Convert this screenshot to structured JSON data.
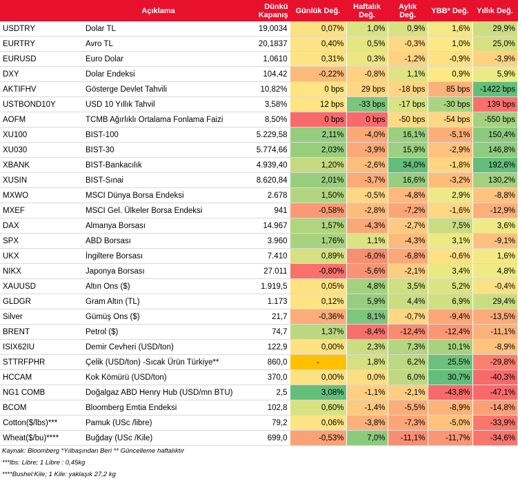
{
  "headers": {
    "code": "",
    "desc": "Açıklama",
    "close_l1": "Dünkü",
    "close_l2": "Kapanış",
    "daily": "Günlük Değ.",
    "weekly_l1": "Haftalık",
    "weekly_l2": "Değ.",
    "monthly_l1": "Aylık",
    "monthly_l2": "Değ.",
    "ytd": "YBB* Değ.",
    "yearly": "Yıllık Değ."
  },
  "rows": [
    {
      "code": "USDTRY",
      "desc": "Dolar TL",
      "close": "19,0034",
      "daily": "0,07%",
      "weekly": "1,0%",
      "monthly": "0,9%",
      "ytd": "1,6%",
      "yearly": "29,9%",
      "colors": [
        "#fde082",
        "#d9e381",
        "#d8e281",
        "#f6e884",
        "#cddd81"
      ]
    },
    {
      "code": "EURTRY",
      "desc": "Avro TL",
      "close": "20,1837",
      "daily": "0,40%",
      "weekly": "0,5%",
      "monthly": "-0,3%",
      "ytd": "1,0%",
      "yearly": "25,0%",
      "colors": [
        "#fde383",
        "#e5e582",
        "#ffd981",
        "#fbe983",
        "#d6e081"
      ]
    },
    {
      "code": "EURUSD",
      "desc": "Euro Dolar",
      "close": "1,0610",
      "daily": "0,31%",
      "weekly": "0,3%",
      "monthly": "-1,2%",
      "ytd": "-0,9%",
      "yearly": "-3,9%",
      "colors": [
        "#fde383",
        "#ece683",
        "#fed280",
        "#ffe183",
        "#fed281"
      ]
    },
    {
      "code": "DXY",
      "desc": "Dolar Endeksi",
      "close": "104,42",
      "daily": "-0,22%",
      "weekly": "-0,8%",
      "monthly": "1,1%",
      "ytd": "0,9%",
      "yearly": "5,9%",
      "colors": [
        "#fcbb7b",
        "#ffd180",
        "#dfe382",
        "#fce983",
        "#ecea84"
      ]
    },
    {
      "code": "AKTIFHV",
      "desc": "Gösterge Devlet Tahvili",
      "close": "10,82%",
      "daily": "0 bps",
      "weekly": "29 bps",
      "monthly": "-18 bps",
      "ytd": "85 bps",
      "yearly": "-1422 bps",
      "colors": [
        "#fee482",
        "#fed782",
        "#fed580",
        "#fbb27a",
        "#64be7b"
      ]
    },
    {
      "code": "USTBOND10Y",
      "desc": "USD 10 Yıllık Tahvil",
      "close": "3,58%",
      "daily": "12 bps",
      "weekly": "-33 bps",
      "monthly": "-17 bps",
      "ytd": "-30 bps",
      "yearly": "139 bps",
      "colors": [
        "#fee482",
        "#7cc57d",
        "#d8e381",
        "#acd480",
        "#f8706c"
      ]
    },
    {
      "code": "AOFM",
      "desc": "TCMB Ağırlıklı Ortalama Fonlama Faizi",
      "close": "8,50%",
      "daily": "0 bps",
      "weekly": "0 bps",
      "monthly": "-50 bps",
      "ytd": "-54 bps",
      "yearly": "-550 bps",
      "colors": [
        "#f8696b",
        "#f8696b",
        "#fddc81",
        "#fdd781",
        "#a4d27f"
      ]
    },
    {
      "code": "XU100",
      "desc": "BIST-100",
      "close": "5.229,58",
      "daily": "2,11%",
      "weekly": "-4,0%",
      "monthly": "16,1%",
      "ytd": "-5,1%",
      "yearly": "150,4%",
      "colors": [
        "#94cd7e",
        "#fba877",
        "#9acf7e",
        "#fcae79",
        "#8ccb7e"
      ]
    },
    {
      "code": "XU030",
      "desc": "BIST-30",
      "close": "5.774,66",
      "daily": "2,03%",
      "weekly": "-3,9%",
      "monthly": "15,9%",
      "ytd": "-2,9%",
      "yearly": "146,8%",
      "colors": [
        "#97ce7e",
        "#fba977",
        "#9bd07f",
        "#fdc27d",
        "#8fcc7e"
      ]
    },
    {
      "code": "XBANK",
      "desc": "BIST-Bankacılık",
      "close": "4.939,40",
      "daily": "1,20%",
      "weekly": "-2,6%",
      "monthly": "34,0%",
      "ytd": "-1,8%",
      "yearly": "192,6%",
      "colors": [
        "#c5da80",
        "#fdbd7c",
        "#63be7b",
        "#ffd580",
        "#63be7b"
      ]
    },
    {
      "code": "XUSIN",
      "desc": "BIST-Sınai",
      "close": "8.620,84",
      "daily": "2,01%",
      "weekly": "-3,7%",
      "monthly": "16,6%",
      "ytd": "-3,2%",
      "yearly": "130,2%",
      "colors": [
        "#97ce7e",
        "#fbab78",
        "#97ce7e",
        "#fcbd7b",
        "#a3d17f"
      ]
    },
    {
      "code": "MXWO",
      "desc": "MSCI Dünya Borsa Endeksi",
      "close": "2.678",
      "daily": "1,50%",
      "weekly": "-0,5%",
      "monthly": "-4,8%",
      "ytd": "2,9%",
      "yearly": "-8,8%",
      "colors": [
        "#b4d57f",
        "#ffd681",
        "#fdb87b",
        "#eee984",
        "#fdc27e"
      ]
    },
    {
      "code": "MXEF",
      "desc": "MSCI Gel. Ülkeler Borsa Endeksi",
      "close": "941",
      "daily": "-0,58%",
      "weekly": "-2,8%",
      "monthly": "-7,2%",
      "ytd": "-1,6%",
      "yearly": "-12,9%",
      "colors": [
        "#fa9974",
        "#fcbc7b",
        "#fca577",
        "#ffd681",
        "#fcaf7a"
      ]
    },
    {
      "code": "DAX",
      "desc": "Almanya Borsası",
      "close": "14.967",
      "daily": "1,57%",
      "weekly": "-4,3%",
      "monthly": "-2,7%",
      "ytd": "7,5%",
      "yearly": "3,6%",
      "colors": [
        "#b0d47f",
        "#fba877",
        "#fdca7f",
        "#c9dc81",
        "#f0e984"
      ]
    },
    {
      "code": "SPX",
      "desc": "ABD Borsası",
      "close": "3.960",
      "daily": "1,76%",
      "weekly": "1,1%",
      "monthly": "-4,3%",
      "ytd": "3,1%",
      "yearly": "-9,1%",
      "colors": [
        "#a8d27f",
        "#dde282",
        "#fcbb7b",
        "#ecea84",
        "#fcc17e"
      ]
    },
    {
      "code": "UKX",
      "desc": "İngiltere Borsası",
      "close": "7.410",
      "daily": "0,89%",
      "weekly": "-6,0%",
      "monthly": "-6,8%",
      "ytd": "-0,6%",
      "yearly": "1,6%",
      "colors": [
        "#d6e081",
        "#f98f71",
        "#fca877",
        "#ffe183",
        "#f4e984"
      ]
    },
    {
      "code": "NIKX",
      "desc": "Japonya Borsası",
      "close": "27.011",
      "daily": "-0,80%",
      "weekly": "-5,6%",
      "monthly": "-2,1%",
      "ytd": "3,4%",
      "yearly": "4,8%",
      "colors": [
        "#f8716c",
        "#f99472",
        "#fdcd80",
        "#e9e983",
        "#eeea84"
      ]
    },
    {
      "code": "XAUUSD",
      "desc": "Altın Ons ($)",
      "close": "1.919,5",
      "daily": "0,05%",
      "weekly": "4,8%",
      "monthly": "3,5%",
      "ytd": "5,2%",
      "yearly": "-0,4%",
      "colors": [
        "#fde282",
        "#a3d17f",
        "#cedf81",
        "#dbe382",
        "#fbe183"
      ]
    },
    {
      "code": "GLDGR",
      "desc": "Gram Altın (TL)",
      "close": "1.173",
      "daily": "0,12%",
      "weekly": "5,9%",
      "monthly": "4,4%",
      "ytd": "6,9%",
      "yearly": "29,4%",
      "colors": [
        "#fde382",
        "#96ce7e",
        "#cadd81",
        "#cfdf81",
        "#cbdd81"
      ]
    },
    {
      "code": "Silver",
      "desc": "Gümüş Ons ($)",
      "close": "21,7",
      "daily": "-0,36%",
      "weekly": "8,1%",
      "monthly": "-0,7%",
      "ytd": "-9,4%",
      "yearly": "-13,5%",
      "colors": [
        "#fcad79",
        "#7ec57d",
        "#fed781",
        "#fca778",
        "#fcab79"
      ]
    },
    {
      "code": "BRENT",
      "desc": "Petrol ($)",
      "close": "74,7",
      "daily": "1,37%",
      "weekly": "-8,4%",
      "monthly": "-12,4%",
      "ytd": "-12,4%",
      "yearly": "-11,1%",
      "colors": [
        "#bbd780",
        "#f8706c",
        "#f98b71",
        "#fb9674",
        "#fcb27a"
      ]
    },
    {
      "code": "ISIX62IU",
      "desc": "Demir Cevheri (USD/ton)",
      "close": "122,9",
      "daily": "0,00%",
      "weekly": "2,3%",
      "monthly": "7,3%",
      "ytd": "10,1%",
      "yearly": "-8,9%",
      "colors": [
        "#fde182",
        "#cbdd81",
        "#b3d680",
        "#a8d27f",
        "#fdc37e"
      ]
    },
    {
      "code": "STTRFPHR",
      "desc": "Çelik (USD/ton) -Sıcak Ürün Türkiye**",
      "close": "860,0",
      "daily": "-",
      "weekly": "1,8%",
      "monthly": "6,2%",
      "ytd": "25,5%",
      "yearly": "-29,8%",
      "colors": [
        "#ffc000",
        "#d4e081",
        "#bcd880",
        "#6ec17c",
        "#f9806f"
      ]
    },
    {
      "code": "HCCAM",
      "desc": "Kok Kömürü (USD/ton)",
      "close": "370,0",
      "daily": "0,00%",
      "weekly": "0,0%",
      "monthly": "6,0%",
      "ytd": "30,7%",
      "yearly": "-40,3%",
      "colors": [
        "#fde182",
        "#fddf82",
        "#bfd980",
        "#63be7b",
        "#f8696b"
      ]
    },
    {
      "code": "NG1 COMB",
      "desc": "Doğalgaz ABD Henry Hub (USD/mn BTU)",
      "close": "2,5",
      "daily": "3,08%",
      "weekly": "-1,1%",
      "monthly": "-2,1%",
      "ytd": "-43,8%",
      "yearly": "-47,1%",
      "colors": [
        "#63be7b",
        "#fdd081",
        "#fdcd80",
        "#f8696b",
        "#f8696b"
      ]
    },
    {
      "code": "BCOM",
      "desc": "Bloomberg Emtia Endeksi",
      "close": "102,8",
      "daily": "0,60%",
      "weekly": "-1,4%",
      "monthly": "-5,5%",
      "ytd": "-8,9%",
      "yearly": "-14,8%",
      "colors": [
        "#d9e281",
        "#fdc97f",
        "#fbae79",
        "#fcb37a",
        "#fba077"
      ]
    },
    {
      "code": "Cotton($/lbs)***",
      "desc": "Pamuk (USc /libre)",
      "close": "79,2",
      "daily": "0,06%",
      "weekly": "-3,8%",
      "monthly": "-7,3%",
      "ytd": "-5,0%",
      "yearly": "-33,9%",
      "colors": [
        "#fde383",
        "#fcb17a",
        "#fba677",
        "#fcc27e",
        "#f9776d"
      ]
    },
    {
      "code": "Wheat($/bu)****",
      "desc": "Buğday (USc /Kile)",
      "close": "699,0",
      "daily": "-0,53%",
      "weekly": "7,0%",
      "monthly": "-11,1%",
      "ytd": "-11,7%",
      "yearly": "-34,6%",
      "colors": [
        "#fba176",
        "#8ccb7e",
        "#f98e72",
        "#fb9674",
        "#f9746d"
      ]
    }
  ],
  "notes": [
    "Kaynak: Bloomberg *Yılbaşından Beri  ** Güncelleme haftalıktır",
    "***lbs: Libre; 1 Libre : 0,45kg",
    "****Bushel:Kile; 1 Kile: yaklaşık 27,2 kg"
  ]
}
